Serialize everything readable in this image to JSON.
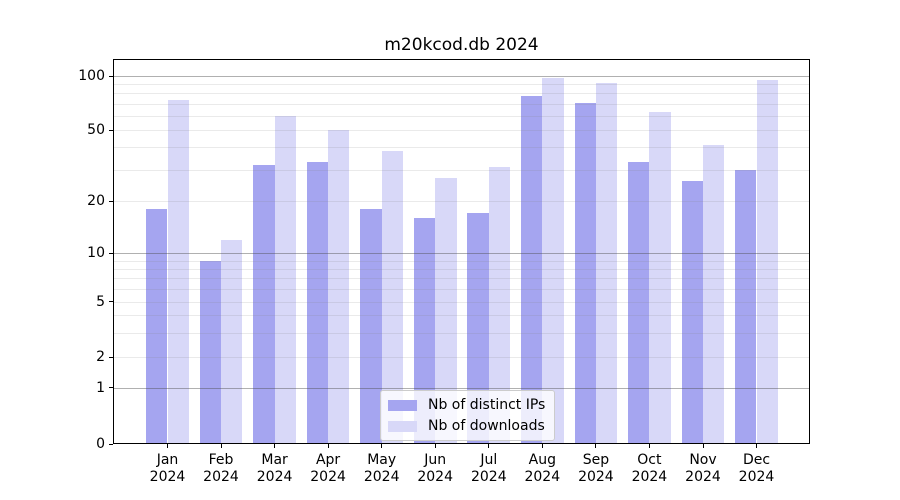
{
  "title": "m20kcod.db 2024",
  "chart_data": {
    "type": "bar",
    "title": "m20kcod.db 2024",
    "categories": [
      "Jan",
      "Feb",
      "Mar",
      "Apr",
      "May",
      "Jun",
      "Jul",
      "Aug",
      "Sep",
      "Oct",
      "Nov",
      "Dec"
    ],
    "category_year": "2024",
    "series": [
      {
        "name": "Nb of distinct IPs",
        "color": "#a5a5f0",
        "values": [
          18,
          9,
          32,
          33,
          18,
          16,
          17,
          77,
          71,
          33,
          26,
          30
        ]
      },
      {
        "name": "Nb of downloads",
        "color": "#d8d8f8",
        "values": [
          74,
          12,
          60,
          50,
          38,
          27,
          31,
          98,
          91,
          63,
          41,
          95
        ]
      }
    ],
    "xlabel": "",
    "ylabel": "",
    "y_axis": {
      "scale": "log-with-zero",
      "tick_labels": [
        0,
        1,
        2,
        5,
        10,
        20,
        50,
        100
      ],
      "minor_gridlines": [
        3,
        4,
        6,
        7,
        8,
        9,
        30,
        40,
        60,
        70,
        80,
        90
      ],
      "major_gridlines": [
        1,
        10,
        100
      ],
      "ylim_top": 110
    },
    "grid": true,
    "legend_position": "lower center"
  }
}
